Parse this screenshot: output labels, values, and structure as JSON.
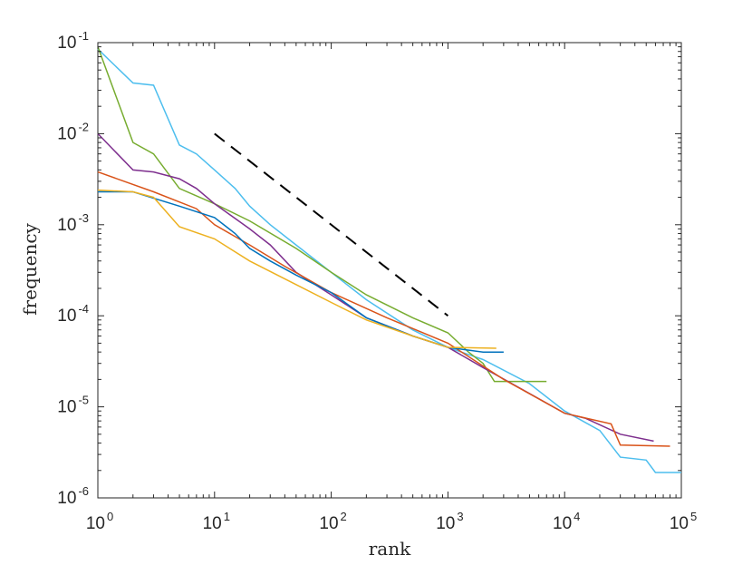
{
  "chart_data": {
    "type": "line",
    "title": "",
    "xlabel": "rank",
    "ylabel": "frequency",
    "xscale": "log",
    "yscale": "log",
    "xlim": [
      1,
      100000
    ],
    "ylim": [
      1e-06,
      0.1
    ],
    "grid": false,
    "x_ticks": [
      {
        "base": "10",
        "exp": "0",
        "value": 1
      },
      {
        "base": "10",
        "exp": "1",
        "value": 10
      },
      {
        "base": "10",
        "exp": "2",
        "value": 100
      },
      {
        "base": "10",
        "exp": "3",
        "value": 1000
      },
      {
        "base": "10",
        "exp": "4",
        "value": 10000
      },
      {
        "base": "10",
        "exp": "5",
        "value": 100000
      }
    ],
    "y_ticks": [
      {
        "base": "10",
        "exp": "-6",
        "value": 1e-06
      },
      {
        "base": "10",
        "exp": "-5",
        "value": 1e-05
      },
      {
        "base": "10",
        "exp": "-4",
        "value": 0.0001
      },
      {
        "base": "10",
        "exp": "-3",
        "value": 0.001
      },
      {
        "base": "10",
        "exp": "-2",
        "value": 0.01
      },
      {
        "base": "10",
        "exp": "-1",
        "value": 0.1
      }
    ],
    "series": [
      {
        "name": "cyan",
        "color": "#4DBEEE",
        "dashed": false,
        "points": [
          [
            1,
            0.085
          ],
          [
            2,
            0.036
          ],
          [
            3,
            0.034
          ],
          [
            5,
            0.0075
          ],
          [
            7,
            0.006
          ],
          [
            10,
            0.004
          ],
          [
            15,
            0.0025
          ],
          [
            20,
            0.0016
          ],
          [
            30,
            0.001
          ],
          [
            50,
            0.0006
          ],
          [
            100,
            0.0003
          ],
          [
            200,
            0.00015
          ],
          [
            500,
            7e-05
          ],
          [
            1000,
            4.5e-05
          ],
          [
            2000,
            3.3e-05
          ],
          [
            5000,
            1.8e-05
          ],
          [
            10000,
            9e-06
          ],
          [
            20000,
            5.5e-06
          ],
          [
            30000,
            2.8e-06
          ],
          [
            50000,
            2.6e-06
          ],
          [
            60000,
            1.9e-06
          ],
          [
            100000,
            1.9e-06
          ]
        ]
      },
      {
        "name": "green",
        "color": "#77AC30",
        "dashed": false,
        "points": [
          [
            1,
            0.09
          ],
          [
            2,
            0.008
          ],
          [
            3,
            0.006
          ],
          [
            5,
            0.0025
          ],
          [
            10,
            0.0017
          ],
          [
            20,
            0.0011
          ],
          [
            50,
            0.00055
          ],
          [
            100,
            0.0003
          ],
          [
            200,
            0.00017
          ],
          [
            500,
            9.5e-05
          ],
          [
            1000,
            6.5e-05
          ],
          [
            1500,
            4e-05
          ],
          [
            2000,
            3e-05
          ],
          [
            2500,
            1.9e-05
          ],
          [
            7000,
            1.9e-05
          ]
        ]
      },
      {
        "name": "purple",
        "color": "#7E2F8E",
        "dashed": false,
        "points": [
          [
            1,
            0.01
          ],
          [
            2,
            0.004
          ],
          [
            3,
            0.0038
          ],
          [
            5,
            0.0032
          ],
          [
            7,
            0.0025
          ],
          [
            10,
            0.0017
          ],
          [
            20,
            0.0009
          ],
          [
            30,
            0.0006
          ],
          [
            50,
            0.0003
          ],
          [
            100,
            0.00017
          ],
          [
            200,
            9.5e-05
          ],
          [
            500,
            6e-05
          ],
          [
            1000,
            4.5e-05
          ],
          [
            2000,
            2.7e-05
          ],
          [
            5000,
            1.4e-05
          ],
          [
            10000,
            8.5e-06
          ],
          [
            15000,
            7.5e-06
          ],
          [
            30000,
            5e-06
          ],
          [
            58000,
            4.2e-06
          ]
        ]
      },
      {
        "name": "red",
        "color": "#D95319",
        "dashed": false,
        "points": [
          [
            1,
            0.0038
          ],
          [
            3,
            0.0023
          ],
          [
            7,
            0.0015
          ],
          [
            10,
            0.001
          ],
          [
            20,
            0.0006
          ],
          [
            40,
            0.00035
          ],
          [
            100,
            0.00018
          ],
          [
            300,
            9.5e-05
          ],
          [
            1000,
            5e-05
          ],
          [
            3000,
            2e-05
          ],
          [
            10000,
            8.5e-06
          ],
          [
            25000,
            6.5e-06
          ],
          [
            30000,
            3.8e-06
          ],
          [
            80000,
            3.7e-06
          ]
        ]
      },
      {
        "name": "blue",
        "color": "#0072BD",
        "dashed": false,
        "points": [
          [
            1,
            0.0023
          ],
          [
            2,
            0.0023
          ],
          [
            5,
            0.0016
          ],
          [
            10,
            0.0012
          ],
          [
            15,
            0.0008
          ],
          [
            20,
            0.00055
          ],
          [
            30,
            0.0004
          ],
          [
            50,
            0.00028
          ],
          [
            100,
            0.00018
          ],
          [
            200,
            9.5e-05
          ],
          [
            500,
            6e-05
          ],
          [
            1000,
            4.5e-05
          ],
          [
            2000,
            4e-05
          ],
          [
            3000,
            4e-05
          ]
        ]
      },
      {
        "name": "yellow",
        "color": "#EDB120",
        "dashed": false,
        "points": [
          [
            1,
            0.0024
          ],
          [
            2,
            0.0023
          ],
          [
            3,
            0.002
          ],
          [
            5,
            0.00095
          ],
          [
            10,
            0.0007
          ],
          [
            20,
            0.0004
          ],
          [
            50,
            0.00022
          ],
          [
            100,
            0.00014
          ],
          [
            200,
            9e-05
          ],
          [
            500,
            6e-05
          ],
          [
            1000,
            4.5e-05
          ],
          [
            2600,
            4.4e-05
          ]
        ]
      },
      {
        "name": "reference slope -1",
        "color": "#000000",
        "dashed": true,
        "points": [
          [
            10,
            0.01
          ],
          [
            1000,
            0.0001
          ]
        ]
      }
    ]
  }
}
